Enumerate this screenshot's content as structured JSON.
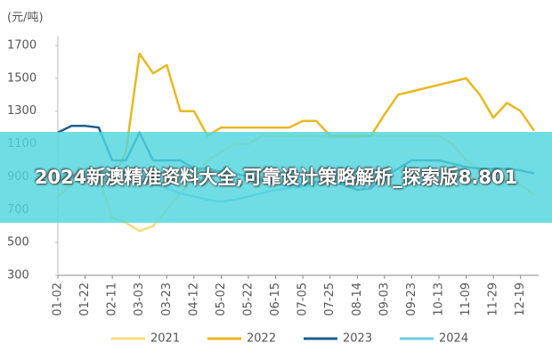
{
  "chart_data": {
    "type": "line",
    "ylabel": "(元/吨)",
    "categories": [
      "01-02",
      null,
      "01-22",
      null,
      "02-11",
      null,
      "03-03",
      null,
      "03-23",
      null,
      "04-12",
      null,
      "05-02",
      null,
      "05-22",
      null,
      "06-15",
      null,
      "07-05",
      null,
      "07-25",
      null,
      "08-14",
      null,
      "09-03",
      null,
      "09-23",
      null,
      "10-13",
      null,
      "11-09",
      null,
      "11-29",
      null,
      "12-19",
      null
    ],
    "series": [
      {
        "name": "2021",
        "color": "#f7dc7e",
        "values": [
          780,
          850,
          950,
          900,
          650,
          620,
          570,
          600,
          700,
          800,
          900,
          1000,
          1050,
          1100,
          1100,
          1150,
          1150,
          1150,
          1150,
          1150,
          1140,
          1140,
          1140,
          1150,
          1150,
          1150,
          1150,
          1150,
          1150,
          1100,
          1000,
          950,
          900,
          900,
          850,
          790
        ]
      },
      {
        "name": "2022",
        "color": "#e8b820",
        "values": [
          null,
          null,
          900,
          900,
          880,
          1050,
          1650,
          1530,
          1580,
          1300,
          1300,
          1150,
          1200,
          1200,
          1200,
          1200,
          1200,
          1200,
          1240,
          1240,
          1150,
          1150,
          1150,
          1150,
          1280,
          1400,
          1420,
          1440,
          1460,
          1480,
          1500,
          1400,
          1260,
          1350,
          1300,
          1180
        ]
      },
      {
        "name": "2023",
        "color": "#1f5f8f",
        "values": [
          1170,
          1210,
          1210,
          1200,
          1000,
          1000,
          1170,
          1000,
          1000,
          1000,
          950,
          950,
          930,
          920,
          900,
          880,
          860,
          850,
          850,
          870,
          880,
          850,
          820,
          830,
          900,
          950,
          1000,
          1000,
          1000,
          980,
          960,
          950,
          950,
          950,
          940,
          920
        ]
      },
      {
        "name": "2024",
        "color": "#6fcde0",
        "values": [
          900,
          910,
          920,
          920,
          930,
          930,
          930,
          860,
          830,
          800,
          780,
          760,
          750,
          760,
          780,
          800,
          820,
          830,
          840,
          850,
          850,
          null,
          null,
          null,
          null,
          null,
          null,
          null,
          null,
          null,
          null,
          null,
          null,
          null,
          null,
          null
        ]
      }
    ],
    "ylim": [
      300,
      1700
    ],
    "yticks": [
      300,
      500,
      700,
      900,
      1100,
      1300,
      1500,
      1700
    ],
    "annotation": "2024新澳精准资料大全,可靠设计策略解析_探索版8.801"
  }
}
